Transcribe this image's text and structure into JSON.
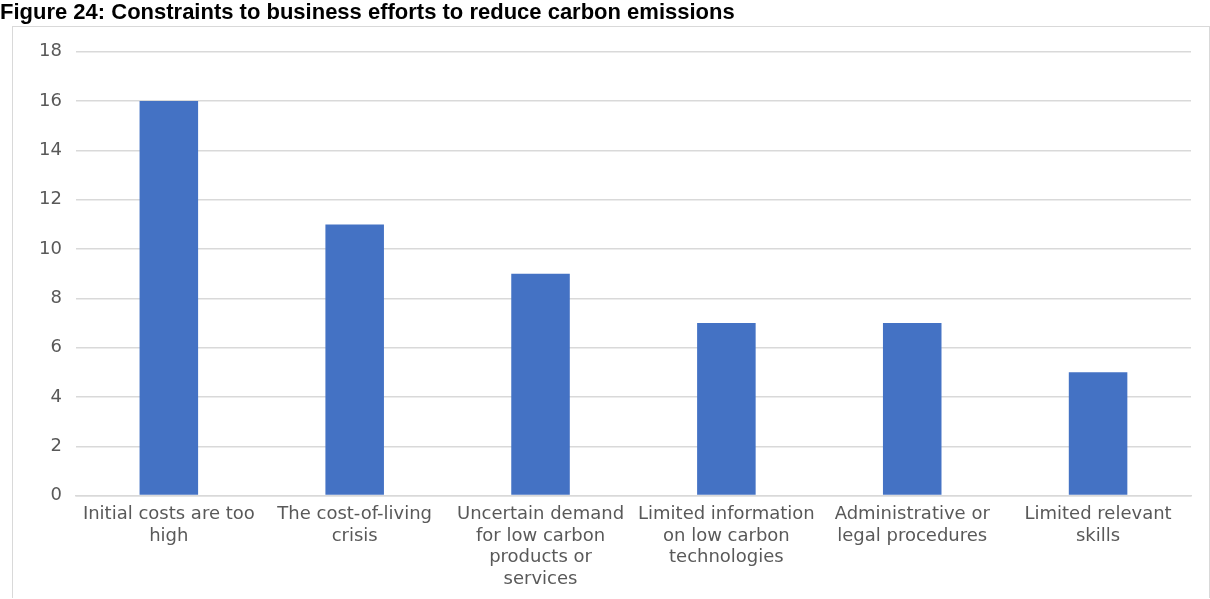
{
  "chart_data": {
    "type": "bar",
    "title": "Figure 24: Constraints to business efforts to reduce carbon emissions",
    "categories": [
      "Initial costs are too high",
      "The cost-of-living crisis",
      "Uncertain demand for low carbon products or services",
      "Limited information on low carbon technologies",
      "Administrative or legal procedures",
      "Limited relevant skills"
    ],
    "values": [
      16,
      11,
      9,
      7,
      7,
      5
    ],
    "color": "#4472c4",
    "ylim": [
      0,
      18
    ],
    "yticks": [
      0,
      2,
      4,
      6,
      8,
      10,
      12,
      14,
      16,
      18
    ],
    "grid": "y",
    "legend": false
  }
}
